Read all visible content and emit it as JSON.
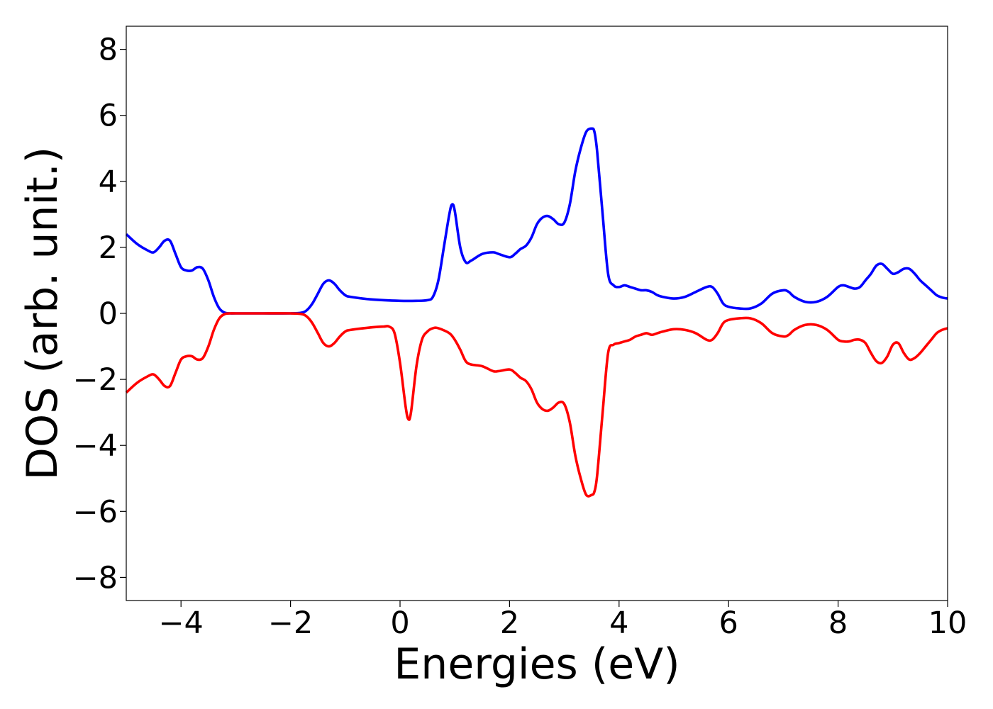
{
  "chart_data": {
    "type": "line",
    "title": "",
    "xlabel": "Energies (eV)",
    "ylabel": "DOS (arb. unit.)",
    "xlim": [
      -5,
      10
    ],
    "ylim": [
      -8.7,
      8.7
    ],
    "xticks": [
      -4,
      -2,
      0,
      2,
      4,
      6,
      8,
      10
    ],
    "xtick_labels": [
      "−4",
      "−2",
      "0",
      "2",
      "4",
      "6",
      "8",
      "10"
    ],
    "yticks": [
      -8,
      -6,
      -4,
      -2,
      0,
      2,
      4,
      6,
      8
    ],
    "ytick_labels": [
      "−8",
      "−6",
      "−4",
      "−2",
      "0",
      "2",
      "4",
      "6",
      "8"
    ],
    "grid": false,
    "legend": "none",
    "series": [
      {
        "color": "#0000ff",
        "x": [
          -5.0,
          -4.8,
          -4.6,
          -4.5,
          -4.4,
          -4.3,
          -4.2,
          -4.1,
          -4.0,
          -3.9,
          -3.8,
          -3.7,
          -3.6,
          -3.5,
          -3.4,
          -3.3,
          -3.2,
          -3.1,
          -3.0,
          -2.5,
          -2.0,
          -1.8,
          -1.7,
          -1.6,
          -1.5,
          -1.4,
          -1.3,
          -1.2,
          -1.1,
          -1.0,
          -0.9,
          -0.5,
          0.0,
          0.3,
          0.5,
          0.6,
          0.7,
          0.8,
          0.9,
          0.95,
          1.0,
          1.1,
          1.2,
          1.3,
          1.5,
          1.7,
          1.8,
          2.0,
          2.1,
          2.2,
          2.3,
          2.4,
          2.5,
          2.6,
          2.7,
          2.8,
          2.9,
          3.0,
          3.1,
          3.2,
          3.3,
          3.4,
          3.5,
          3.55,
          3.6,
          3.7,
          3.8,
          3.9,
          4.0,
          4.1,
          4.2,
          4.3,
          4.4,
          4.5,
          4.6,
          4.7,
          4.8,
          5.0,
          5.2,
          5.4,
          5.6,
          5.7,
          5.8,
          5.9,
          6.0,
          6.2,
          6.4,
          6.6,
          6.8,
          7.0,
          7.1,
          7.2,
          7.4,
          7.6,
          7.8,
          8.0,
          8.1,
          8.2,
          8.3,
          8.4,
          8.5,
          8.6,
          8.7,
          8.8,
          8.9,
          9.0,
          9.1,
          9.2,
          9.3,
          9.4,
          9.5,
          9.6,
          9.7,
          9.8,
          9.9,
          10.0
        ],
        "y": [
          2.4,
          2.1,
          1.9,
          1.85,
          2.0,
          2.2,
          2.2,
          1.8,
          1.4,
          1.3,
          1.3,
          1.4,
          1.35,
          1.0,
          0.5,
          0.15,
          0.02,
          0.0,
          0.0,
          0.0,
          0.0,
          0.02,
          0.1,
          0.3,
          0.6,
          0.9,
          1.0,
          0.9,
          0.7,
          0.55,
          0.5,
          0.42,
          0.38,
          0.38,
          0.4,
          0.5,
          1.0,
          2.0,
          3.0,
          3.3,
          3.1,
          2.0,
          1.55,
          1.6,
          1.8,
          1.85,
          1.8,
          1.7,
          1.8,
          1.95,
          2.05,
          2.3,
          2.7,
          2.9,
          2.95,
          2.85,
          2.7,
          2.75,
          3.3,
          4.3,
          5.0,
          5.5,
          5.6,
          5.5,
          4.9,
          3.0,
          1.2,
          0.85,
          0.8,
          0.85,
          0.8,
          0.75,
          0.7,
          0.7,
          0.65,
          0.55,
          0.5,
          0.45,
          0.5,
          0.65,
          0.8,
          0.8,
          0.6,
          0.3,
          0.2,
          0.15,
          0.15,
          0.3,
          0.6,
          0.7,
          0.65,
          0.5,
          0.35,
          0.35,
          0.5,
          0.8,
          0.85,
          0.8,
          0.75,
          0.8,
          1.0,
          1.2,
          1.45,
          1.5,
          1.35,
          1.2,
          1.25,
          1.35,
          1.35,
          1.2,
          1.0,
          0.85,
          0.7,
          0.55,
          0.48,
          0.45
        ]
      },
      {
        "color": "#ff0000",
        "x": [
          -5.0,
          -4.8,
          -4.6,
          -4.5,
          -4.4,
          -4.3,
          -4.2,
          -4.1,
          -4.0,
          -3.9,
          -3.8,
          -3.7,
          -3.6,
          -3.5,
          -3.4,
          -3.3,
          -3.2,
          -3.1,
          -3.0,
          -2.5,
          -2.0,
          -1.8,
          -1.7,
          -1.6,
          -1.5,
          -1.4,
          -1.3,
          -1.2,
          -1.1,
          -1.0,
          -0.9,
          -0.5,
          -0.3,
          -0.2,
          -0.1,
          0.0,
          0.1,
          0.15,
          0.2,
          0.3,
          0.4,
          0.5,
          0.6,
          0.7,
          0.9,
          1.0,
          1.1,
          1.2,
          1.3,
          1.5,
          1.7,
          1.8,
          2.0,
          2.1,
          2.2,
          2.3,
          2.4,
          2.5,
          2.6,
          2.7,
          2.8,
          2.9,
          3.0,
          3.1,
          3.2,
          3.3,
          3.4,
          3.5,
          3.55,
          3.6,
          3.7,
          3.8,
          3.9,
          4.0,
          4.1,
          4.2,
          4.3,
          4.4,
          4.5,
          4.6,
          4.7,
          4.8,
          5.0,
          5.2,
          5.4,
          5.6,
          5.7,
          5.8,
          5.9,
          6.0,
          6.2,
          6.4,
          6.6,
          6.8,
          7.0,
          7.1,
          7.2,
          7.4,
          7.6,
          7.8,
          8.0,
          8.1,
          8.2,
          8.3,
          8.4,
          8.5,
          8.6,
          8.7,
          8.8,
          8.9,
          9.0,
          9.1,
          9.2,
          9.3,
          9.4,
          9.5,
          9.6,
          9.7,
          9.8,
          9.9,
          10.0
        ],
        "y": [
          -2.4,
          -2.1,
          -1.9,
          -1.85,
          -2.0,
          -2.2,
          -2.2,
          -1.8,
          -1.4,
          -1.3,
          -1.3,
          -1.4,
          -1.35,
          -1.0,
          -0.5,
          -0.15,
          -0.02,
          0.0,
          0.0,
          0.0,
          0.0,
          -0.02,
          -0.1,
          -0.3,
          -0.6,
          -0.9,
          -1.0,
          -0.9,
          -0.7,
          -0.55,
          -0.5,
          -0.42,
          -0.4,
          -0.4,
          -0.6,
          -1.5,
          -2.8,
          -3.2,
          -3.0,
          -1.6,
          -0.8,
          -0.55,
          -0.45,
          -0.45,
          -0.6,
          -0.8,
          -1.1,
          -1.45,
          -1.55,
          -1.6,
          -1.75,
          -1.75,
          -1.7,
          -1.8,
          -1.95,
          -2.05,
          -2.3,
          -2.7,
          -2.9,
          -2.95,
          -2.85,
          -2.7,
          -2.75,
          -3.3,
          -4.3,
          -5.0,
          -5.5,
          -5.5,
          -5.4,
          -4.9,
          -3.0,
          -1.2,
          -0.95,
          -0.9,
          -0.85,
          -0.8,
          -0.7,
          -0.65,
          -0.6,
          -0.65,
          -0.6,
          -0.55,
          -0.48,
          -0.5,
          -0.6,
          -0.8,
          -0.8,
          -0.6,
          -0.3,
          -0.2,
          -0.15,
          -0.15,
          -0.3,
          -0.6,
          -0.7,
          -0.65,
          -0.5,
          -0.35,
          -0.35,
          -0.5,
          -0.8,
          -0.85,
          -0.85,
          -0.8,
          -0.8,
          -0.9,
          -1.2,
          -1.45,
          -1.5,
          -1.3,
          -0.95,
          -0.9,
          -1.2,
          -1.4,
          -1.35,
          -1.2,
          -1.0,
          -0.8,
          -0.6,
          -0.5,
          -0.45
        ]
      }
    ]
  }
}
